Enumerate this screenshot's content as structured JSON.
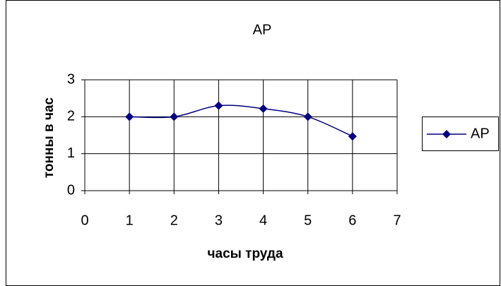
{
  "chart_data": {
    "type": "line",
    "title": "AP",
    "xlabel": "часы труда",
    "ylabel": "тонны в час",
    "x": [
      1,
      2,
      3,
      4,
      5,
      6
    ],
    "series": [
      {
        "name": "AP",
        "color": "#000080",
        "values": [
          2,
          2,
          2.3,
          2.22,
          2,
          1.47
        ]
      }
    ],
    "xlim": [
      0,
      7
    ],
    "xticks": [
      0,
      1,
      2,
      3,
      4,
      5,
      6,
      7
    ],
    "ylim": [
      0,
      3
    ],
    "yticks": [
      0,
      1,
      2,
      3
    ],
    "grid": true,
    "smooth": true,
    "legend": "right"
  }
}
